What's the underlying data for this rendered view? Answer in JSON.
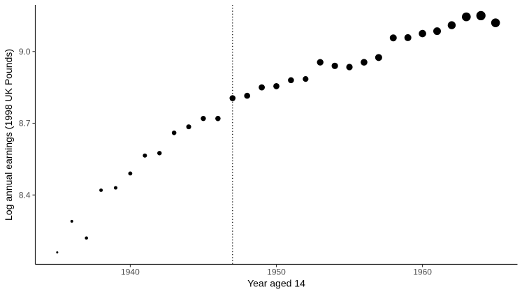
{
  "figure": {
    "background_color": "#ffffff",
    "point_color": "#000000",
    "axis_line_color": "#1a1a1a",
    "tick_color": "#333333",
    "tick_label_color": "#4d4d4d",
    "reference_line_color": "#000000"
  },
  "chart_data": {
    "type": "scatter",
    "title": "",
    "xlabel": "Year aged 14",
    "ylabel": "Log annual earnings (1998 UK Pounds)",
    "x": [
      1935,
      1936,
      1937,
      1938,
      1939,
      1940,
      1941,
      1942,
      1943,
      1944,
      1945,
      1946,
      1947,
      1948,
      1949,
      1950,
      1951,
      1952,
      1953,
      1954,
      1955,
      1956,
      1957,
      1958,
      1959,
      1960,
      1961,
      1962,
      1963,
      1964,
      1965
    ],
    "y": [
      8.16,
      8.29,
      8.22,
      8.42,
      8.43,
      8.49,
      8.565,
      8.575,
      8.66,
      8.685,
      8.72,
      8.72,
      8.805,
      8.815,
      8.85,
      8.855,
      8.88,
      8.885,
      8.955,
      8.94,
      8.935,
      8.955,
      8.975,
      9.057,
      9.058,
      9.075,
      9.085,
      9.11,
      9.145,
      9.15,
      9.12
    ],
    "point_radius_px": [
      1.5,
      2.0,
      2.3,
      2.5,
      2.6,
      2.9,
      3.0,
      3.2,
      3.3,
      3.5,
      3.7,
      3.8,
      4.3,
      4.3,
      4.4,
      4.4,
      4.3,
      4.1,
      4.7,
      4.6,
      4.6,
      4.8,
      5.0,
      5.0,
      5.0,
      5.3,
      5.5,
      5.7,
      6.3,
      6.6,
      6.3
    ],
    "size_note": "point size increases with cohort sample size",
    "xlim": [
      1933.5,
      1966.5
    ],
    "ylim": [
      8.11,
      9.195
    ],
    "x_ticks": {
      "values": [
        1940,
        1950,
        1960
      ],
      "labels": [
        "1940",
        "1950",
        "1960"
      ]
    },
    "y_ticks": {
      "values": [
        8.4,
        8.7,
        9.0
      ],
      "labels": [
        "8.4",
        "8.7",
        "9.0"
      ]
    },
    "reference_line": {
      "orientation": "vertical",
      "x": 1947,
      "style": "dotted"
    },
    "grid": false,
    "legend": false
  }
}
